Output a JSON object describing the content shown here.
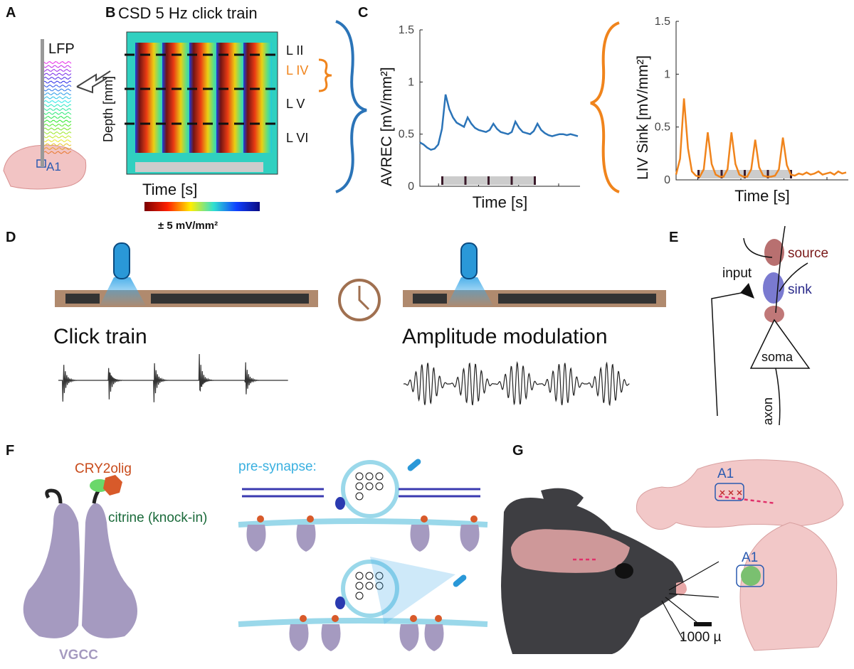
{
  "panels": {
    "A": {
      "letter": "A",
      "probe": "LFP",
      "region": "A1"
    },
    "B": {
      "letter": "B",
      "title": "CSD 5 Hz click train",
      "ylabel": "Depth [mm]",
      "xlabel": "Time [s]",
      "layers": [
        "L II",
        "L IV",
        "L V",
        "L VI"
      ],
      "colorbar": "± 5 mV/mm²"
    },
    "C": {
      "letter": "C"
    },
    "D": {
      "letter": "D",
      "left": "Click train",
      "right": "Amplitude modulation"
    },
    "E": {
      "letter": "E",
      "input": "input",
      "source": "source",
      "sink": "sink",
      "soma": "soma",
      "axon": "axon"
    },
    "F": {
      "letter": "F",
      "cry": "CRY2olig",
      "citrine": "citrine (knock-in)",
      "vgcc": "VGCC",
      "presynapse": "pre-synapse:"
    },
    "G": {
      "letter": "G",
      "region_top": "A1",
      "region_bottom": "A1",
      "scale": "1000 µ"
    }
  },
  "chart_data": [
    {
      "type": "line",
      "ylabel": "AVREC [mV/mm²]",
      "xlabel": "Time [s]",
      "ylim": [
        0,
        1.5
      ],
      "yticks": [
        0,
        0.5,
        1,
        1.5
      ],
      "series": [
        {
          "name": "AVREC",
          "color": "#2b74b8",
          "values": [
            0.42,
            0.4,
            0.37,
            0.35,
            0.36,
            0.4,
            0.55,
            0.88,
            0.74,
            0.66,
            0.61,
            0.59,
            0.57,
            0.66,
            0.6,
            0.56,
            0.54,
            0.53,
            0.52,
            0.54,
            0.6,
            0.55,
            0.52,
            0.51,
            0.5,
            0.52,
            0.62,
            0.56,
            0.52,
            0.51,
            0.5,
            0.53,
            0.6,
            0.54,
            0.51,
            0.49,
            0.48,
            0.49,
            0.5,
            0.5,
            0.49,
            0.5,
            0.49,
            0.48
          ]
        }
      ]
    },
    {
      "type": "line",
      "ylabel": "LIV Sink [mV/mm²]",
      "xlabel": "Time [s]",
      "ylim": [
        0,
        1.5
      ],
      "yticks": [
        0,
        0.5,
        1,
        1.5
      ],
      "series": [
        {
          "name": "LIV Sink",
          "color": "#f0841c",
          "values": [
            0.05,
            0.2,
            0.77,
            0.3,
            0.08,
            0.04,
            0.03,
            0.1,
            0.45,
            0.15,
            0.05,
            0.03,
            0.03,
            0.1,
            0.45,
            0.15,
            0.05,
            0.03,
            0.03,
            0.1,
            0.38,
            0.12,
            0.04,
            0.03,
            0.03,
            0.04,
            0.1,
            0.4,
            0.14,
            0.05,
            0.04,
            0.06,
            0.05,
            0.07,
            0.05,
            0.06,
            0.08,
            0.05,
            0.06,
            0.07,
            0.05,
            0.08,
            0.06,
            0.07
          ]
        }
      ]
    }
  ]
}
